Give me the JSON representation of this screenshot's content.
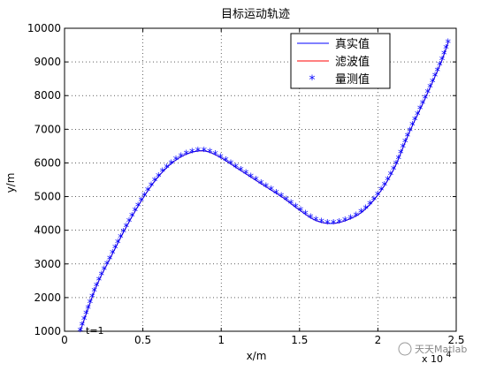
{
  "chart_data": {
    "type": "line",
    "title": "目标运动轨迹",
    "xlabel": "x/m",
    "ylabel": "y/m",
    "x_multiplier": "x 10",
    "x_multiplier_exp": "4",
    "xlim": [
      0,
      2.5
    ],
    "ylim": [
      1000,
      10000
    ],
    "xticks": [
      0,
      0.5,
      1,
      1.5,
      2,
      2.5
    ],
    "yticks": [
      1000,
      2000,
      3000,
      4000,
      5000,
      6000,
      7000,
      8000,
      9000,
      10000
    ],
    "grid": true,
    "legend_position": "top-right",
    "annotation": "t=1",
    "watermark": "天天Matlab",
    "series": [
      {
        "name": "真实值",
        "style": "line",
        "color": "#0000ff"
      },
      {
        "name": "滤波值",
        "style": "line",
        "color": "#ff0000"
      },
      {
        "name": "量测值",
        "style": "marker",
        "marker": "*",
        "color": "#0000ff"
      }
    ],
    "trajectory": [
      [
        0.1,
        1000
      ],
      [
        0.2,
        2300
      ],
      [
        0.3,
        3250
      ],
      [
        0.4,
        4150
      ],
      [
        0.5,
        4950
      ],
      [
        0.6,
        5600
      ],
      [
        0.7,
        6050
      ],
      [
        0.8,
        6300
      ],
      [
        0.9,
        6350
      ],
      [
        1.0,
        6150
      ],
      [
        1.1,
        5850
      ],
      [
        1.2,
        5550
      ],
      [
        1.3,
        5250
      ],
      [
        1.4,
        4950
      ],
      [
        1.5,
        4600
      ],
      [
        1.6,
        4300
      ],
      [
        1.7,
        4200
      ],
      [
        1.8,
        4300
      ],
      [
        1.9,
        4550
      ],
      [
        2.0,
        5050
      ],
      [
        2.1,
        5800
      ],
      [
        2.2,
        6900
      ],
      [
        2.3,
        7900
      ],
      [
        2.4,
        8950
      ],
      [
        2.45,
        9600
      ]
    ]
  }
}
